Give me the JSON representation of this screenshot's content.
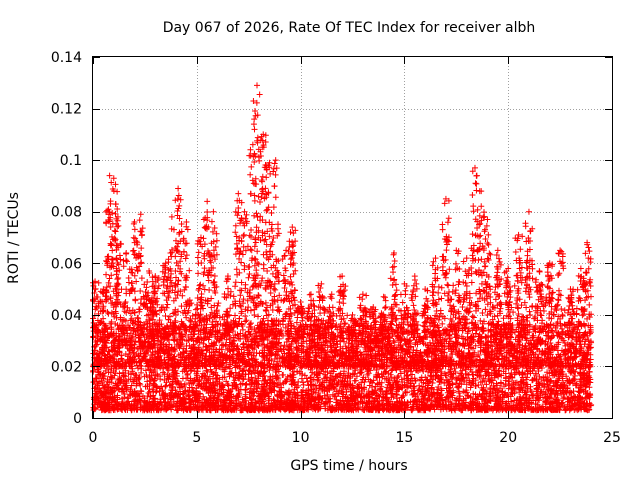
{
  "chart_data": {
    "type": "scatter",
    "title": "Day 067 of 2026, Rate Of TEC Index for receiver albh",
    "xlabel": "GPS time / hours",
    "ylabel": "ROTI / TECUs",
    "xlim": [
      0,
      25
    ],
    "ylim": [
      0,
      0.14
    ],
    "xticks": [
      0,
      5,
      10,
      15,
      20,
      25
    ],
    "xtick_labels": [
      "0",
      "5",
      "10",
      "15",
      "20",
      "25"
    ],
    "yticks": [
      0,
      0.02,
      0.04,
      0.06,
      0.08,
      0.1,
      0.12,
      0.14
    ],
    "ytick_labels": [
      "0",
      "0.02",
      "0.04",
      "0.06",
      "0.08",
      "0.1",
      "0.12",
      "0.14"
    ],
    "grid": true,
    "marker": "+",
    "color": "#ff0000",
    "x_range_data": [
      0,
      24
    ],
    "baseline_band": [
      0.003,
      0.035
    ],
    "peaks": [
      {
        "x": 0.1,
        "y": 0.053
      },
      {
        "x": 0.5,
        "y": 0.05
      },
      {
        "x": 0.8,
        "y": 0.094
      },
      {
        "x": 1.0,
        "y": 0.093
      },
      {
        "x": 1.2,
        "y": 0.078
      },
      {
        "x": 1.6,
        "y": 0.064
      },
      {
        "x": 2.0,
        "y": 0.076
      },
      {
        "x": 2.3,
        "y": 0.079
      },
      {
        "x": 2.7,
        "y": 0.057
      },
      {
        "x": 3.0,
        "y": 0.055
      },
      {
        "x": 3.5,
        "y": 0.06
      },
      {
        "x": 3.8,
        "y": 0.078
      },
      {
        "x": 4.1,
        "y": 0.089
      },
      {
        "x": 4.5,
        "y": 0.076
      },
      {
        "x": 5.2,
        "y": 0.07
      },
      {
        "x": 5.5,
        "y": 0.084
      },
      {
        "x": 5.8,
        "y": 0.08
      },
      {
        "x": 6.5,
        "y": 0.055
      },
      {
        "x": 7.0,
        "y": 0.087
      },
      {
        "x": 7.3,
        "y": 0.08
      },
      {
        "x": 7.7,
        "y": 0.106
      },
      {
        "x": 7.9,
        "y": 0.129
      },
      {
        "x": 8.2,
        "y": 0.11
      },
      {
        "x": 8.5,
        "y": 0.099
      },
      {
        "x": 8.8,
        "y": 0.1
      },
      {
        "x": 9.3,
        "y": 0.065
      },
      {
        "x": 9.6,
        "y": 0.074
      },
      {
        "x": 10.0,
        "y": 0.045
      },
      {
        "x": 10.5,
        "y": 0.048
      },
      {
        "x": 11.0,
        "y": 0.052
      },
      {
        "x": 11.5,
        "y": 0.048
      },
      {
        "x": 12.0,
        "y": 0.055
      },
      {
        "x": 12.5,
        "y": 0.04
      },
      {
        "x": 13.0,
        "y": 0.048
      },
      {
        "x": 13.5,
        "y": 0.043
      },
      {
        "x": 14.0,
        "y": 0.047
      },
      {
        "x": 14.5,
        "y": 0.064
      },
      {
        "x": 15.0,
        "y": 0.052
      },
      {
        "x": 15.5,
        "y": 0.055
      },
      {
        "x": 16.0,
        "y": 0.05
      },
      {
        "x": 16.5,
        "y": 0.062
      },
      {
        "x": 17.0,
        "y": 0.085
      },
      {
        "x": 17.5,
        "y": 0.065
      },
      {
        "x": 18.0,
        "y": 0.062
      },
      {
        "x": 18.4,
        "y": 0.097
      },
      {
        "x": 18.7,
        "y": 0.088
      },
      {
        "x": 19.0,
        "y": 0.077
      },
      {
        "x": 19.5,
        "y": 0.065
      },
      {
        "x": 20.0,
        "y": 0.058
      },
      {
        "x": 20.5,
        "y": 0.071
      },
      {
        "x": 21.0,
        "y": 0.08
      },
      {
        "x": 21.5,
        "y": 0.057
      },
      {
        "x": 22.0,
        "y": 0.06
      },
      {
        "x": 22.5,
        "y": 0.065
      },
      {
        "x": 23.0,
        "y": 0.05
      },
      {
        "x": 23.5,
        "y": 0.058
      },
      {
        "x": 23.8,
        "y": 0.068
      }
    ]
  }
}
